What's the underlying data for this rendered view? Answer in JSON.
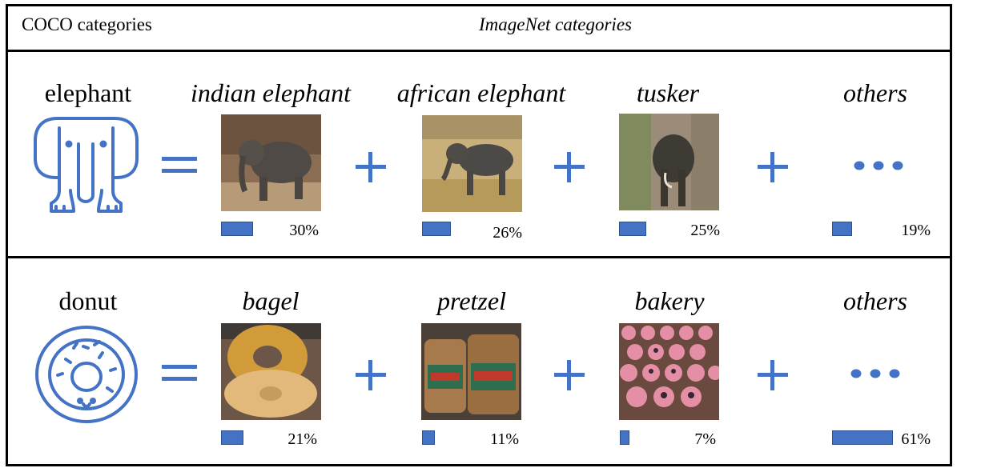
{
  "header": {
    "left": "COCO categories",
    "center": "ImageNet categories"
  },
  "rows": [
    {
      "coco": "elephant",
      "icon": "elephant-icon",
      "items": [
        {
          "label": "indian elephant",
          "percent_text": "30%",
          "percent": 30
        },
        {
          "label": "african elephant",
          "percent_text": "26%",
          "percent": 26
        },
        {
          "label": "tusker",
          "percent_text": "25%",
          "percent": 25
        },
        {
          "label": "others",
          "percent_text": "19%",
          "percent": 19
        }
      ]
    },
    {
      "coco": "donut",
      "icon": "donut-icon",
      "items": [
        {
          "label": "bagel",
          "percent_text": "21%",
          "percent": 21
        },
        {
          "label": "pretzel",
          "percent_text": "11%",
          "percent": 11
        },
        {
          "label": "bakery",
          "percent_text": "7%",
          "percent": 7
        },
        {
          "label": "others",
          "percent_text": "61%",
          "percent": 61
        }
      ]
    }
  ],
  "colors": {
    "accent": "#4472c4",
    "border": "#000000"
  }
}
